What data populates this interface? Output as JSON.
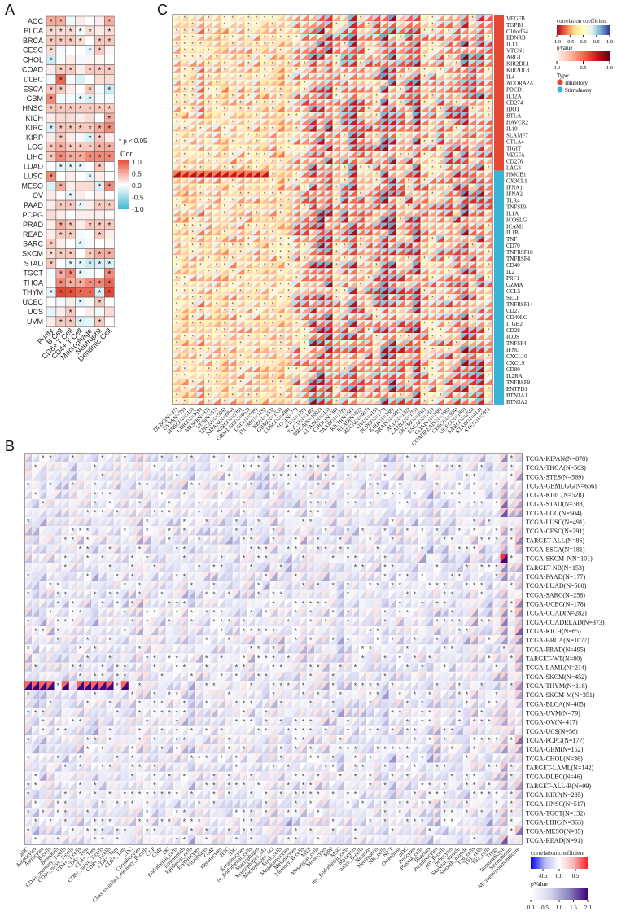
{
  "panels": {
    "a": "A",
    "b": "B",
    "c": "C"
  },
  "chart_data": [
    {
      "id": "A",
      "type": "heatmap",
      "rows": [
        "ACC",
        "BLCA",
        "BRCA",
        "CESC",
        "CHOL",
        "COAD",
        "DLBC",
        "ESCA",
        "GBM",
        "HNSC",
        "KICH",
        "KIRC",
        "KIRP",
        "LGG",
        "LIHC",
        "LUAD",
        "LUSC",
        "MESO",
        "OV",
        "PAAD",
        "PCPG",
        "PRAD",
        "READ",
        "SARC",
        "SKCM",
        "STAD",
        "TGCT",
        "THCA",
        "THYM",
        "UCEC",
        "UCS",
        "UVM"
      ],
      "columns": [
        "Purity",
        "B Cell",
        "CD8+ T Cell",
        "CD4+ T Cell",
        "Macrophage",
        "Neutrophil",
        "Dendritic Cell"
      ],
      "values": [
        [
          0.4,
          0.4,
          -0.1,
          0.1,
          0,
          0.1,
          0.4
        ],
        [
          0.2,
          0.2,
          0.2,
          -0.1,
          0.2,
          0.1,
          0.2
        ],
        [
          0.3,
          0.3,
          0.3,
          0.2,
          0,
          0.3,
          0.3
        ],
        [
          0.2,
          -0.1,
          0,
          0,
          -0.2,
          0.3,
          0.05
        ],
        [
          -0.4,
          -0.05,
          0.1,
          -0.1,
          0.05,
          0.05,
          0
        ],
        [
          0.1,
          0.3,
          0.3,
          0.1,
          0.3,
          0.3,
          0.3
        ],
        [
          -0.1,
          0.6,
          -0.1,
          -0.3,
          0,
          0.2,
          0.2
        ],
        [
          0.3,
          0.3,
          0.1,
          0,
          0.3,
          -0.1,
          -0.4
        ],
        [
          0.5,
          -0.1,
          -0.1,
          -0.2,
          -0.3,
          -0.1,
          -0.1
        ],
        [
          0.3,
          0.3,
          0.3,
          0.3,
          0.3,
          0.3,
          0.3
        ],
        [
          0.1,
          0.2,
          0.2,
          0.1,
          0.2,
          0,
          0.4
        ],
        [
          -0.3,
          0.3,
          0.3,
          0.3,
          0.3,
          0.4,
          0.5
        ],
        [
          0.1,
          0.3,
          0.1,
          -0.1,
          -0.3,
          0.3,
          0.1
        ],
        [
          0.3,
          0.4,
          0.3,
          0.3,
          0.3,
          0.4,
          0.4
        ],
        [
          0.3,
          0.5,
          0.4,
          0.4,
          0.5,
          0.5,
          0.5
        ],
        [
          0,
          -0.2,
          -0.2,
          -0.2,
          0,
          0.3,
          0
        ],
        [
          0.5,
          0,
          0.1,
          0,
          -0.2,
          0.1,
          0
        ],
        [
          -0.3,
          0.4,
          0.1,
          0.2,
          0.2,
          -0.3,
          0.5
        ],
        [
          0.1,
          0,
          -0.2,
          0.1,
          0,
          0.1,
          0
        ],
        [
          0.1,
          0.3,
          0.3,
          -0.2,
          0.1,
          0.3,
          0.3
        ],
        [
          0.2,
          0.1,
          -0.05,
          0.1,
          0.1,
          0.1,
          0.05
        ],
        [
          0.1,
          0.4,
          0.3,
          0.1,
          0.3,
          0.3,
          0.3
        ],
        [
          0.1,
          0.3,
          0.3,
          -0.1,
          0,
          0.3,
          0.1
        ],
        [
          0.3,
          0.1,
          0,
          -0.2,
          -0.1,
          0,
          0.05
        ],
        [
          0.2,
          0.3,
          0.3,
          0,
          0.3,
          0.4,
          0.4
        ],
        [
          0.3,
          0,
          -0.2,
          -0.2,
          -0.4,
          -0.3,
          -0.3
        ],
        [
          -0.1,
          0.4,
          0.5,
          -0.2,
          -0.1,
          0,
          0.5
        ],
        [
          0,
          0.5,
          0.4,
          0.4,
          0.5,
          0.5,
          0.6
        ],
        [
          -0.2,
          0.8,
          0.7,
          0.6,
          0.6,
          -0.3,
          0.8
        ],
        [
          0,
          -0.1,
          0.1,
          -0.2,
          -0.1,
          0.3,
          0
        ],
        [
          -0.2,
          0.1,
          0.3,
          0,
          0.1,
          -0.1,
          0.2
        ],
        [
          0.1,
          0.3,
          0.3,
          -0.3,
          -0.2,
          0.3,
          0
        ]
      ],
      "significant": [
        [
          1,
          1,
          0,
          0,
          0,
          0,
          1
        ],
        [
          1,
          1,
          1,
          1,
          1,
          0,
          1
        ],
        [
          1,
          1,
          1,
          1,
          0,
          1,
          1
        ],
        [
          1,
          0,
          0,
          0,
          1,
          1,
          0
        ],
        [
          1,
          0,
          0,
          0,
          0,
          0,
          0
        ],
        [
          0,
          1,
          1,
          0,
          1,
          1,
          1
        ],
        [
          0,
          1,
          0,
          0,
          0,
          0,
          0
        ],
        [
          1,
          1,
          0,
          0,
          1,
          0,
          1
        ],
        [
          1,
          0,
          0,
          1,
          1,
          0,
          0
        ],
        [
          1,
          1,
          1,
          1,
          1,
          1,
          1
        ],
        [
          0,
          0,
          0,
          0,
          0,
          0,
          1
        ],
        [
          1,
          1,
          1,
          1,
          1,
          1,
          1
        ],
        [
          0,
          1,
          0,
          0,
          1,
          1,
          0
        ],
        [
          1,
          1,
          1,
          1,
          1,
          1,
          1
        ],
        [
          1,
          1,
          1,
          1,
          1,
          1,
          1
        ],
        [
          0,
          1,
          1,
          1,
          0,
          1,
          0
        ],
        [
          1,
          0,
          0,
          0,
          1,
          0,
          0
        ],
        [
          0,
          1,
          0,
          0,
          0,
          1,
          1
        ],
        [
          0,
          0,
          1,
          0,
          0,
          0,
          0
        ],
        [
          0,
          1,
          1,
          1,
          0,
          1,
          1
        ],
        [
          0,
          0,
          0,
          0,
          0,
          0,
          0
        ],
        [
          0,
          1,
          1,
          0,
          1,
          1,
          1
        ],
        [
          0,
          1,
          1,
          0,
          0,
          1,
          0
        ],
        [
          1,
          0,
          0,
          1,
          0,
          0,
          0
        ],
        [
          1,
          1,
          1,
          0,
          1,
          1,
          1
        ],
        [
          1,
          0,
          1,
          1,
          1,
          1,
          1
        ],
        [
          0,
          1,
          1,
          1,
          0,
          0,
          1
        ],
        [
          0,
          1,
          1,
          1,
          1,
          1,
          1
        ],
        [
          1,
          1,
          1,
          1,
          1,
          1,
          1
        ],
        [
          0,
          0,
          0,
          1,
          0,
          1,
          0
        ],
        [
          0,
          0,
          1,
          0,
          0,
          0,
          0
        ],
        [
          0,
          1,
          1,
          1,
          0,
          1,
          0
        ]
      ],
      "legend": {
        "note": "* p < 0.05",
        "title": "Cor",
        "ticks": [
          "1.0",
          "0.5",
          "0.0",
          "-0.5",
          "-1.0"
        ],
        "colors": [
          "#e8503c",
          "#ffffff",
          "#3cb9d6"
        ],
        "range": [
          -1,
          1
        ]
      }
    },
    {
      "id": "C",
      "type": "heatmap",
      "columns": [
        "DLBC(N=47)",
        "UVM(N=79)",
        "HNSC(N=518)",
        "LIHC(N=369)",
        "MESO(N=87)",
        "UCS(N=57)",
        "THCA(N=504)",
        "KIPAN(N=884)",
        "KIRC(N=530)",
        "GBMLGG(N=662)",
        "LGG(N=509)",
        "THYM(N=119)",
        "NB(N=153)",
        "GBM(N=153)",
        "LUSC(N=498)",
        "ACC(N=77)",
        "WT(N=120)",
        "TGCT(N=148)",
        "BRCA(N=1092)",
        "LUAD(N=513)",
        "CHOL(N=36)",
        "PAAD(N=178)",
        "KICH(N=66)",
        "READ(N=92)",
        "BLCA(N=407)",
        "OV(N=419)",
        "PCPG(N=177)",
        "KIRP(N=288)",
        "PRAD(N=495)",
        "ALL(N=132)",
        "LAML(N=173)",
        "SKCM(N=102)",
        "ESCA(N=181)",
        "COAD(N=288)",
        "COADREAD(N=380)",
        "CESC(N=304)",
        "UCEC(N=180)",
        "SARC(N=258)",
        "STAD(N=414)",
        "STES(N=595)"
      ],
      "rows": [
        "VEGFB",
        "TGFB1",
        "C10orf54",
        "EDNRB",
        "IL13",
        "VTCN1",
        "ARG1",
        "KIR2DL1",
        "KIR2DL3",
        "IL4",
        "ADORA2A",
        "PDCD1",
        "IL12A",
        "CD274",
        "IDO1",
        "BTLA",
        "HAVCR2",
        "IL10",
        "SLAMF7",
        "CTLA4",
        "TIGIT",
        "VEGFA",
        "CD276",
        "LAG3",
        "HMGB1",
        "CX3CL1",
        "IFNA1",
        "IFNA2",
        "TLR4",
        "TNFSF9",
        "IL1A",
        "ICOSLG",
        "ICAM1",
        "IL1B",
        "TNF",
        "CD70",
        "TNFRSF18",
        "TNFRSF4",
        "CD40",
        "IL2",
        "PRF1",
        "GZMA",
        "CCL5",
        "SELP",
        "TNFRSF14",
        "CD27",
        "CD40LG",
        "ITGB2",
        "CD28",
        "ICOS",
        "TNFSF4",
        "IFNG",
        "CXCL10",
        "CXCL9",
        "CD80",
        "IL2RA",
        "TNFRSF9",
        "ENTPD1",
        "BTN3A1",
        "BTN3A2"
      ],
      "row_types": {
        "Inhibitory": 24,
        "Stimulaotry": 36
      },
      "legend": {
        "cor_title": "correlation coefficient",
        "cor_ticks": [
          "-1.0",
          "-0.5",
          "0.0",
          "0.5",
          "1.0"
        ],
        "cor_range": [
          -1,
          1
        ],
        "p_title": "pValue",
        "p_ticks": [
          "0.0",
          "0.5",
          "1.0"
        ],
        "p_range": [
          0,
          1
        ],
        "type_title": "Type:",
        "types": [
          {
            "label": "Inhibitory",
            "color": "#e34a33"
          },
          {
            "label": "Stimulaotry",
            "color": "#3bb3d4"
          }
        ]
      }
    },
    {
      "id": "B",
      "type": "heatmap",
      "columns": [
        "aDC",
        "Adipocytes",
        "Astrocytes",
        "B-cells",
        "Basophils",
        "CD4+_memory_T-cells",
        "CD4+_naive_T-cells",
        "CD4+_T-cells",
        "CD4+_Tcm",
        "CD4+_Tem",
        "CD8+_naive_T-cells",
        "CD8+_T-cells",
        "CD8+_Tcm",
        "CD8+_Tem",
        "cDC",
        "Chondrocytes",
        "Class-switched_memory_B-cells",
        "CLP",
        "CMP",
        "DC",
        "Endothelial_cells",
        "Eosinophils",
        "Epithelial_cells",
        "Erythrocytes",
        "Fibroblasts",
        "GMP",
        "Hepatocytes",
        "HSC",
        "iDC",
        "Keratinocytes",
        "ly_Endothelial_cells",
        "Macrophages",
        "Macrophages_M1",
        "Macrophages_M2",
        "Mast_cells",
        "Megakaryocytes",
        "Melanocytes",
        "Memory_B-cells",
        "MEP",
        "Mesangial_cells",
        "Monocytes",
        "MPP",
        "MSC",
        "mv_Endothelial_cells",
        "Myocytes",
        "naive_B-cells",
        "Neurons",
        "Neutrophils",
        "NK_cells",
        "NKT",
        "Osteoblast",
        "pDC",
        "Pericytes",
        "Plasma_cells",
        "Platelets",
        "Preadipocytes",
        "pro_B-cells",
        "Sebocytes",
        "Skeletal_muscle",
        "Smooth_muscle",
        "Tgd_cells",
        "Th1_cells",
        "Th2_cells",
        "Tregs",
        "ImmuneScore",
        "StromaScore",
        "MicroenvironmentScore"
      ],
      "rows": [
        "TCGA-KIPAN(N=878)",
        "TCGA-THCA(N=503)",
        "TCGA-STES(N=569)",
        "TCGA-GBMLGG(N=656)",
        "TCGA-KIRC(N=528)",
        "TCGA-STAD(N=388)",
        "TCGA-LGG(N=504)",
        "TCGA-LUSC(N=491)",
        "TCGA-CESC(N=291)",
        "TARGET-ALL(N=86)",
        "TCGA-ESCA(N=181)",
        "TCGA-SKCM-P(N=101)",
        "TARGET-NB(N=153)",
        "TCGA-PAAD(N=177)",
        "TCGA-LUAD(N=500)",
        "TCGA-SARC(N=258)",
        "TCGA-UCEC(N=178)",
        "TCGA-COAD(N=282)",
        "TCGA-COADREAD(N=373)",
        "TCGA-KICH(N=65)",
        "TCGA-BRCA(N=1077)",
        "TCGA-PRAD(N=495)",
        "TARGET-WT(N=80)",
        "TCGA-LAML(N=214)",
        "TCGA-SKCM(N=452)",
        "TCGA-THYM(N=118)",
        "TCGA-SKCM-M(N=351)",
        "TCGA-BLCA(N=405)",
        "TCGA-UVM(N=79)",
        "TCGA-OV(N=417)",
        "TCGA-UCS(N=56)",
        "TCGA-PCPG(N=177)",
        "TCGA-GBM(N=152)",
        "TCGA-CHOL(N=36)",
        "TARGET-LAML(N=142)",
        "TCGA-DLBC(N=46)",
        "TARGET-ALL-R(N=99)",
        "TCGA-KIRP(N=285)",
        "TCGA-HNSC(N=517)",
        "TCGA-TGCT(N=132)",
        "TCGA-LIHC(N=363)",
        "TCGA-MESO(N=85)",
        "TCGA-READ(N=91)"
      ],
      "legend": {
        "cor_title": "correlation coefficient",
        "cor_ticks": [
          "-0.5",
          "0.0",
          "0.5"
        ],
        "cor_range": [
          -0.9,
          0.9
        ],
        "p_title": "pValue",
        "p_ticks": [
          "0.0",
          "0.5",
          "1.0",
          "1.5",
          "2.0"
        ],
        "p_range": [
          0,
          2
        ]
      }
    }
  ]
}
